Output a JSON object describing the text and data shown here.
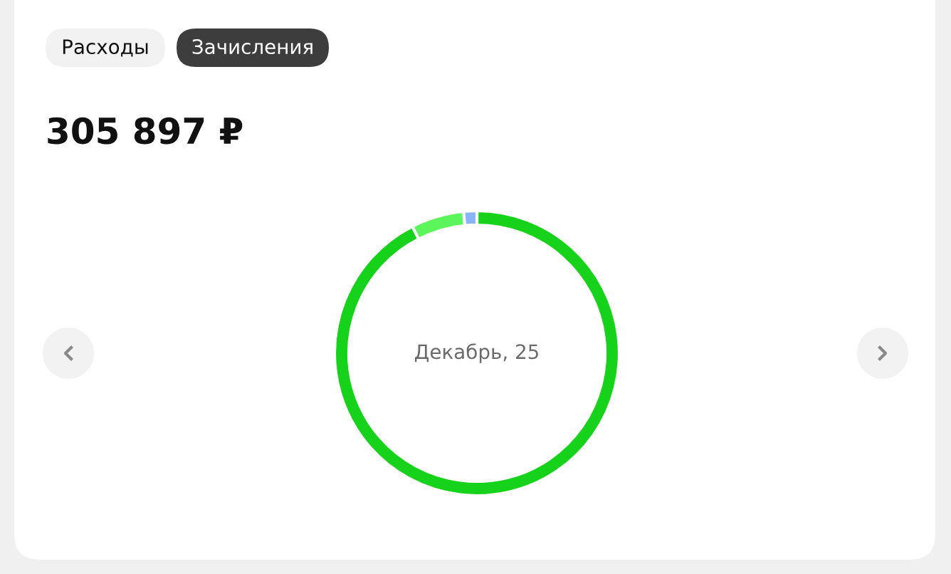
{
  "chart_data": {
    "type": "donut",
    "title": "305 897 ₽",
    "annotations": [
      "Расходы",
      "Зачисления",
      "Декабрь, 25"
    ],
    "categories": [
      null,
      null,
      null
    ],
    "values": [
      92.5,
      6.0,
      1.5
    ],
    "colors": [
      "#17d21a",
      "#5cf65c",
      "#8ab4f8"
    ],
    "legend": false
  }
}
